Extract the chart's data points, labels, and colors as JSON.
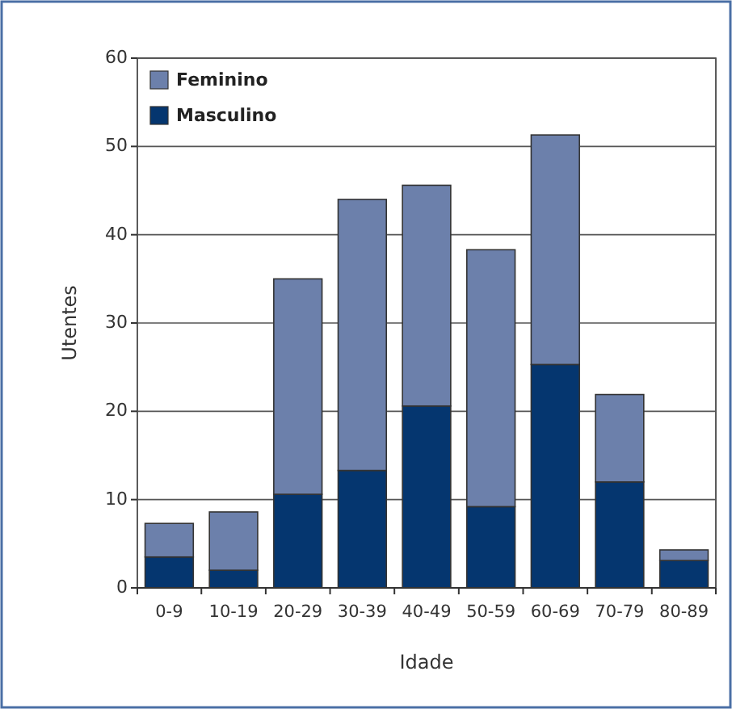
{
  "chart_data": {
    "type": "bar",
    "stacked": true,
    "xlabel": "Idade",
    "ylabel": "Utentes",
    "categories": [
      "0-9",
      "10-19",
      "20-29",
      "30-39",
      "40-49",
      "50-59",
      "60-69",
      "70-79",
      "80-89"
    ],
    "series": [
      {
        "name": "Masculino",
        "color": "#05366f",
        "values": [
          3.5,
          2,
          10.6,
          13.3,
          20.6,
          9.2,
          25.3,
          12,
          3.1
        ]
      },
      {
        "name": "Feminino",
        "color": "#6c80ab",
        "values": [
          3.8,
          6.6,
          24.4,
          30.7,
          25,
          29.1,
          26,
          9.9,
          1.2
        ]
      }
    ],
    "ylim": [
      0,
      60
    ],
    "yticks": [
      0,
      10,
      20,
      30,
      40,
      50,
      60
    ],
    "grid": "y",
    "legend": "top left"
  }
}
